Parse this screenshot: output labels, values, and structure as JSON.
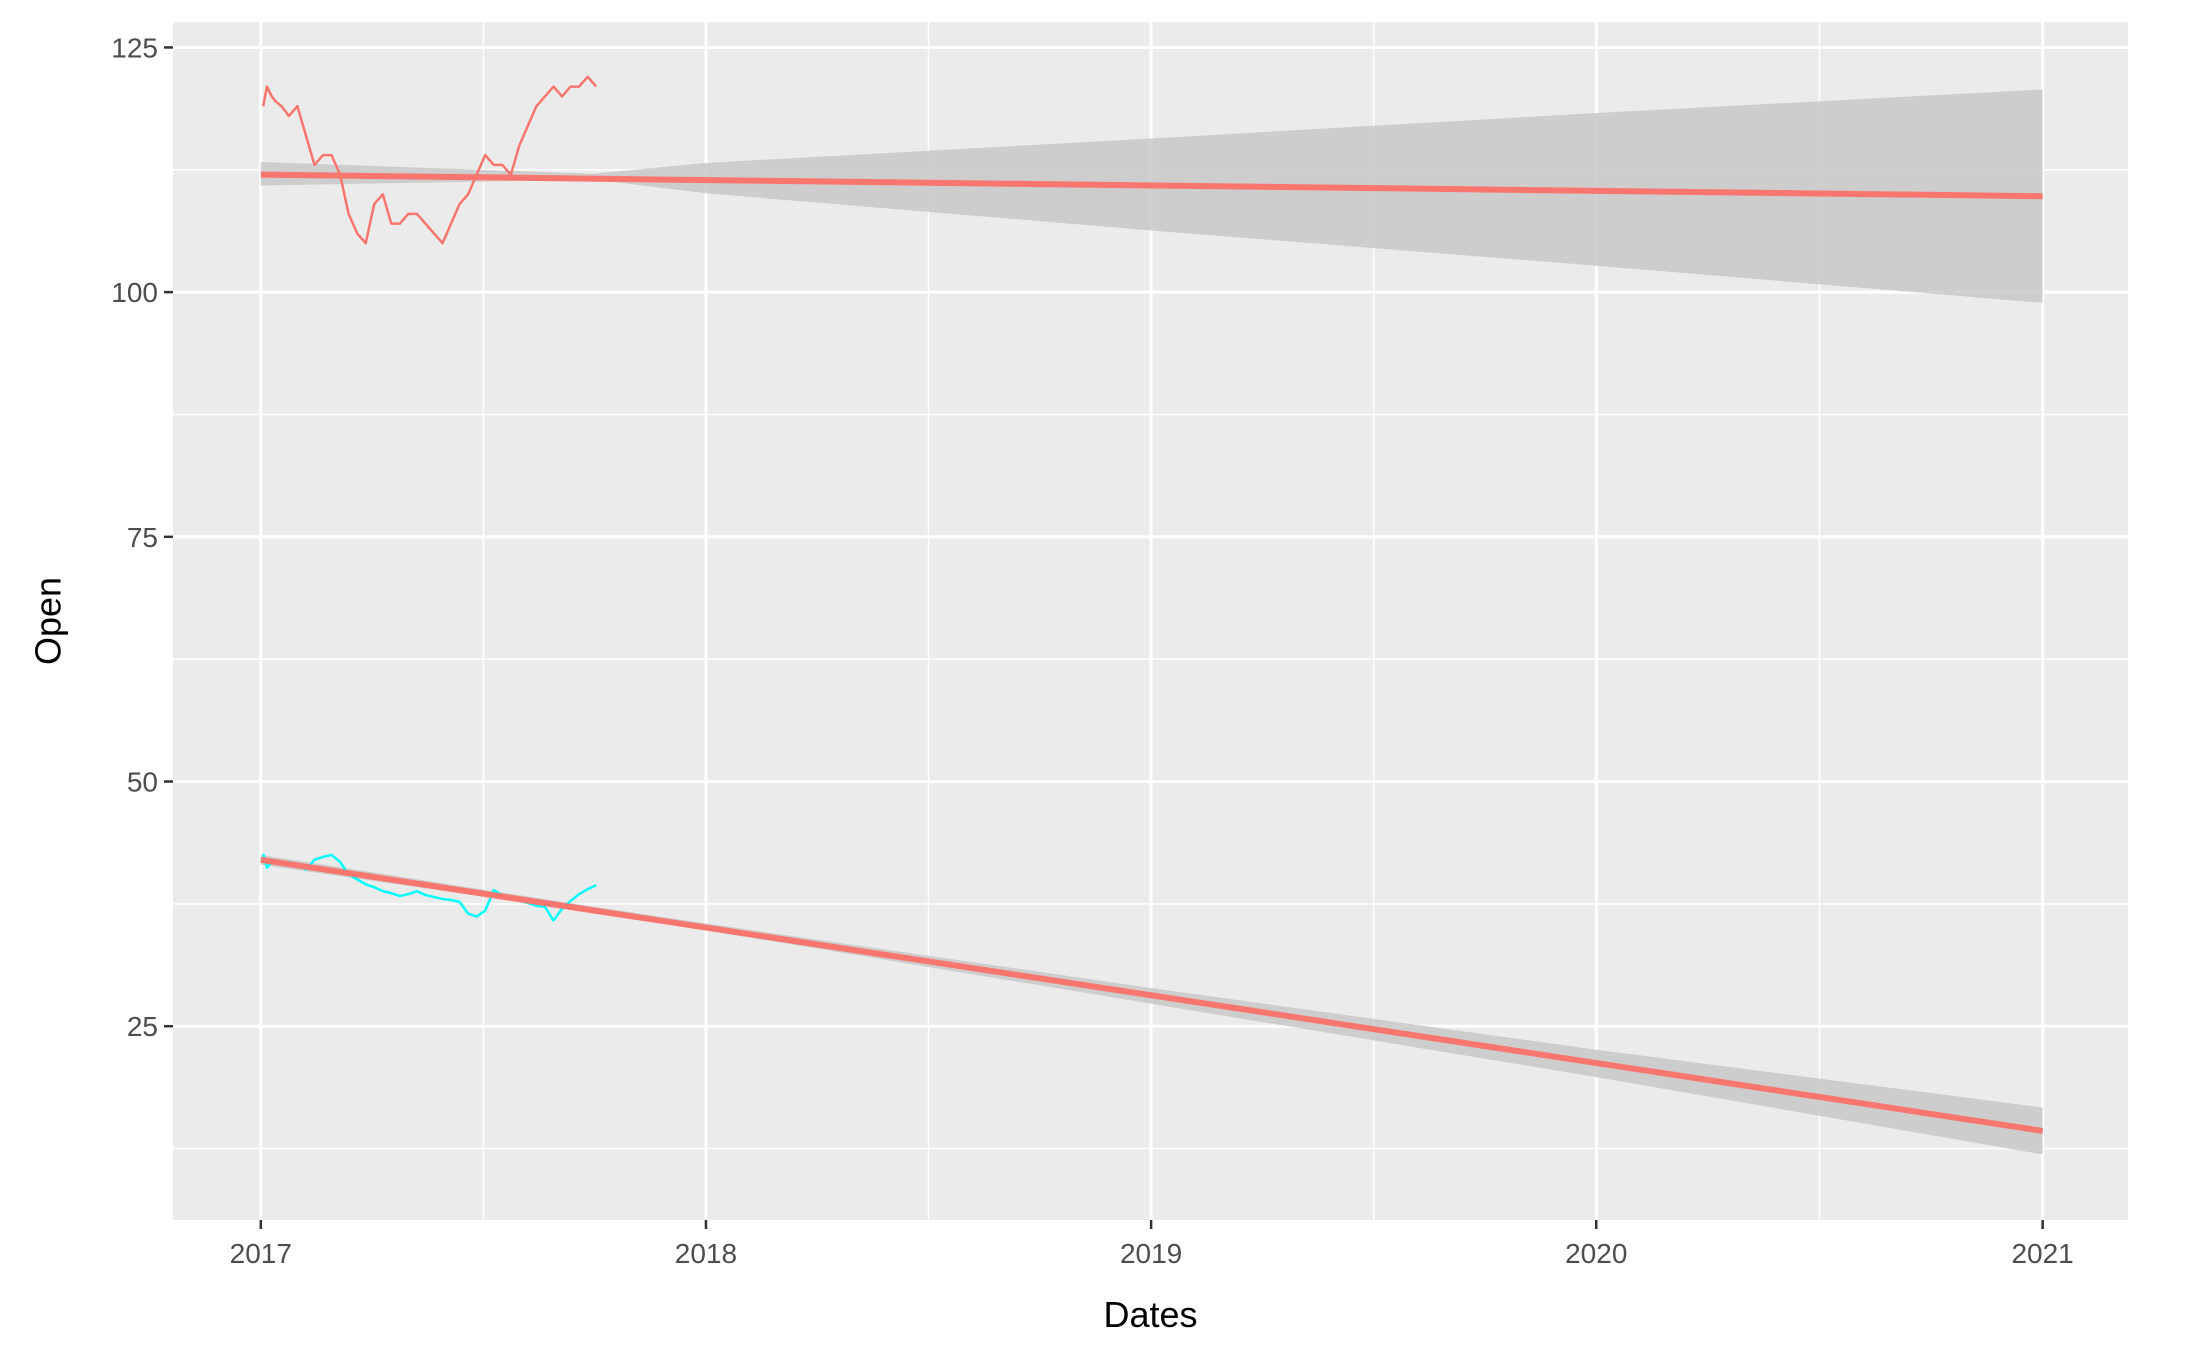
{
  "chart_data": {
    "type": "line",
    "title": "",
    "xlabel": "Dates",
    "ylabel": "Open",
    "xlim": [
      "2016-10-21",
      "2021-03-12"
    ],
    "ylim": [
      5.2,
      127.6
    ],
    "x_ticks": [
      {
        "value": "2017-01-01",
        "label": "2017"
      },
      {
        "value": "2018-01-01",
        "label": "2018"
      },
      {
        "value": "2019-01-01",
        "label": "2019"
      },
      {
        "value": "2020-01-01",
        "label": "2020"
      },
      {
        "value": "2021-01-01",
        "label": "2021"
      }
    ],
    "y_ticks": [
      {
        "value": 25,
        "label": "25"
      },
      {
        "value": 50,
        "label": "50"
      },
      {
        "value": 75,
        "label": "75"
      },
      {
        "value": 100,
        "label": "100"
      },
      {
        "value": 125,
        "label": "125"
      }
    ],
    "grid": true,
    "legend": "none",
    "colors": {
      "panel": "#ebebeb",
      "grid": "#ffffff",
      "series_upper": "#f8766d",
      "series_lower": "#00ffff",
      "trend": "#f8766d",
      "band": "#c8c8c8"
    },
    "series": [
      {
        "color": "#f8766d",
        "x": [
          "2017-01-03",
          "2017-01-06",
          "2017-01-10",
          "2017-01-13",
          "2017-01-18",
          "2017-01-24",
          "2017-01-31",
          "2017-02-07",
          "2017-02-14",
          "2017-02-21",
          "2017-02-28",
          "2017-03-07",
          "2017-03-14",
          "2017-03-21",
          "2017-03-28",
          "2017-04-04",
          "2017-04-11",
          "2017-04-18",
          "2017-04-25",
          "2017-05-02",
          "2017-05-09",
          "2017-05-16",
          "2017-05-23",
          "2017-05-30",
          "2017-06-06",
          "2017-06-13",
          "2017-06-20",
          "2017-06-27",
          "2017-07-04",
          "2017-07-11",
          "2017-07-18",
          "2017-07-25",
          "2017-08-01",
          "2017-08-08",
          "2017-08-15",
          "2017-08-22",
          "2017-08-29",
          "2017-09-05",
          "2017-09-12",
          "2017-09-19",
          "2017-09-26",
          "2017-10-03"
        ],
        "y": [
          119,
          121,
          120,
          119.5,
          119,
          118,
          119,
          116,
          113,
          114,
          114,
          112,
          108,
          106,
          105,
          109,
          110,
          107,
          107,
          108,
          108,
          107,
          106,
          105,
          107,
          109,
          110,
          112,
          114,
          113,
          113,
          112,
          115,
          117,
          119,
          120,
          121,
          120,
          121,
          121,
          122,
          121
        ]
      },
      {
        "color": "#00ffff",
        "x": [
          "2017-01-03",
          "2017-01-06",
          "2017-01-10",
          "2017-01-17",
          "2017-01-24",
          "2017-01-31",
          "2017-02-07",
          "2017-02-14",
          "2017-02-21",
          "2017-02-28",
          "2017-03-07",
          "2017-03-14",
          "2017-03-21",
          "2017-03-28",
          "2017-04-04",
          "2017-04-11",
          "2017-04-18",
          "2017-04-25",
          "2017-05-02",
          "2017-05-09",
          "2017-05-16",
          "2017-05-23",
          "2017-05-30",
          "2017-06-06",
          "2017-06-13",
          "2017-06-20",
          "2017-06-27",
          "2017-07-04",
          "2017-07-11",
          "2017-07-18",
          "2017-07-25",
          "2017-08-01",
          "2017-08-08",
          "2017-08-15",
          "2017-08-22",
          "2017-08-29",
          "2017-09-05",
          "2017-09-12",
          "2017-09-19",
          "2017-09-26",
          "2017-10-03"
        ],
        "y": [
          42.6,
          41.2,
          41.8,
          41.5,
          41.8,
          41.5,
          41,
          42,
          42.3,
          42.5,
          41.8,
          40.5,
          40,
          39.5,
          39.2,
          38.8,
          38.6,
          38.3,
          38.5,
          38.8,
          38.4,
          38.2,
          38,
          37.9,
          37.7,
          36.5,
          36.2,
          36.8,
          38.9,
          38.4,
          38.1,
          37.8,
          37.6,
          37.3,
          37.2,
          35.8,
          37,
          37.8,
          38.5,
          39,
          39.4
        ]
      }
    ],
    "trends": [
      {
        "color": "#f8766d",
        "x": [
          "2017-01-01",
          "2021-01-01"
        ],
        "y": [
          112,
          109.8
        ],
        "band": {
          "x": [
            "2017-01-01",
            "2017-10-01",
            "2018-01-01",
            "2019-01-01",
            "2020-01-01",
            "2021-01-01"
          ],
          "lower": [
            110.9,
            111.5,
            110.1,
            106.3,
            102.7,
            98.9
          ],
          "upper": [
            113.3,
            112.1,
            113.2,
            115.7,
            118.3,
            120.7
          ]
        }
      },
      {
        "color": "#f8766d",
        "x": [
          "2017-01-01",
          "2021-01-01"
        ],
        "y": [
          42,
          14.3
        ],
        "band": {
          "x": [
            "2017-01-01",
            "2017-10-01",
            "2018-01-01",
            "2019-01-01",
            "2020-01-01",
            "2021-01-01"
          ],
          "lower": [
            41.5,
            36.6,
            34.8,
            27.3,
            19.8,
            11.9
          ],
          "upper": [
            42.5,
            37.2,
            35.5,
            28.9,
            22.6,
            16.7
          ]
        }
      }
    ]
  }
}
